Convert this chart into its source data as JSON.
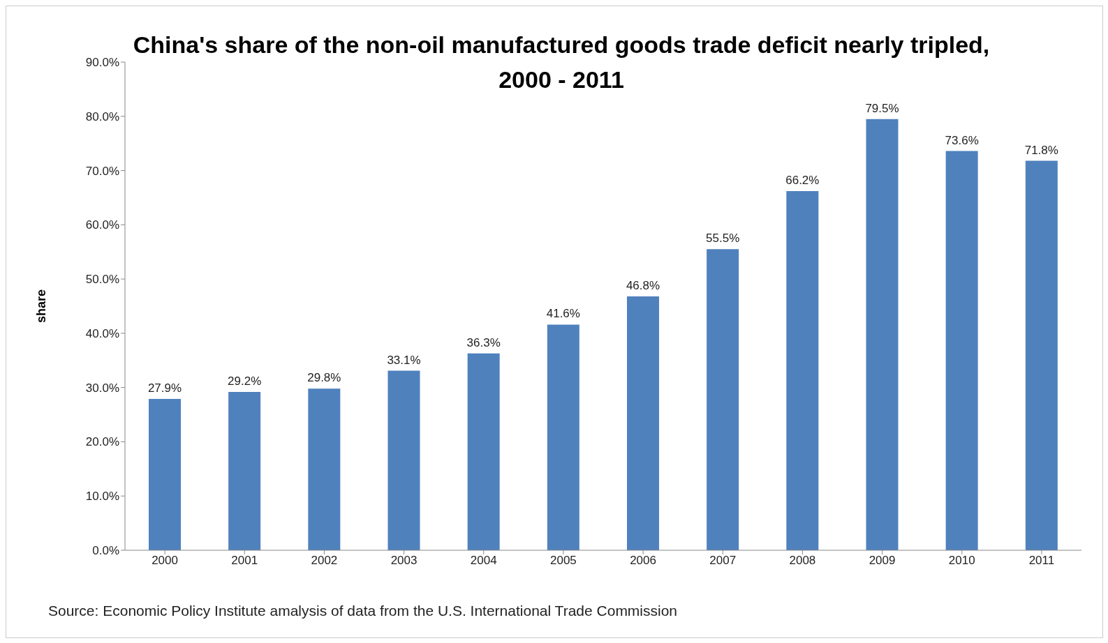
{
  "chart_data": {
    "type": "bar",
    "title": "China's share of the non-oil manufactured goods trade deficit nearly tripled, 2000 - 2011",
    "ylabel": "share",
    "categories": [
      "2000",
      "2001",
      "2002",
      "2003",
      "2004",
      "2005",
      "2006",
      "2007",
      "2008",
      "2009",
      "2010",
      "2011"
    ],
    "values": [
      27.9,
      29.2,
      29.8,
      33.1,
      36.3,
      41.6,
      46.8,
      55.5,
      66.2,
      79.5,
      73.6,
      71.8
    ],
    "value_labels": [
      "27.9%",
      "29.2%",
      "29.8%",
      "33.1%",
      "36.3%",
      "41.6%",
      "46.8%",
      "55.5%",
      "66.2%",
      "79.5%",
      "73.6%",
      "71.8%"
    ],
    "color": "#4f81bd",
    "ylim": [
      0,
      90
    ],
    "yticks": [
      {
        "value": 0,
        "label": "0.0%"
      },
      {
        "value": 10,
        "label": "10.0%"
      },
      {
        "value": 20,
        "label": "20.0%"
      },
      {
        "value": 30,
        "label": "30.0%"
      },
      {
        "value": 40,
        "label": "40.0%"
      },
      {
        "value": 50,
        "label": "50.0%"
      },
      {
        "value": 60,
        "label": "60.0%"
      },
      {
        "value": 70,
        "label": "70.0%"
      },
      {
        "value": 80,
        "label": "80.0%"
      },
      {
        "value": 90,
        "label": "90.0%"
      }
    ],
    "grid": false,
    "legend": false,
    "annotations": [
      "Source: Economic Policy Institute amalysis of data from the U.S. International Trade Commission"
    ]
  }
}
